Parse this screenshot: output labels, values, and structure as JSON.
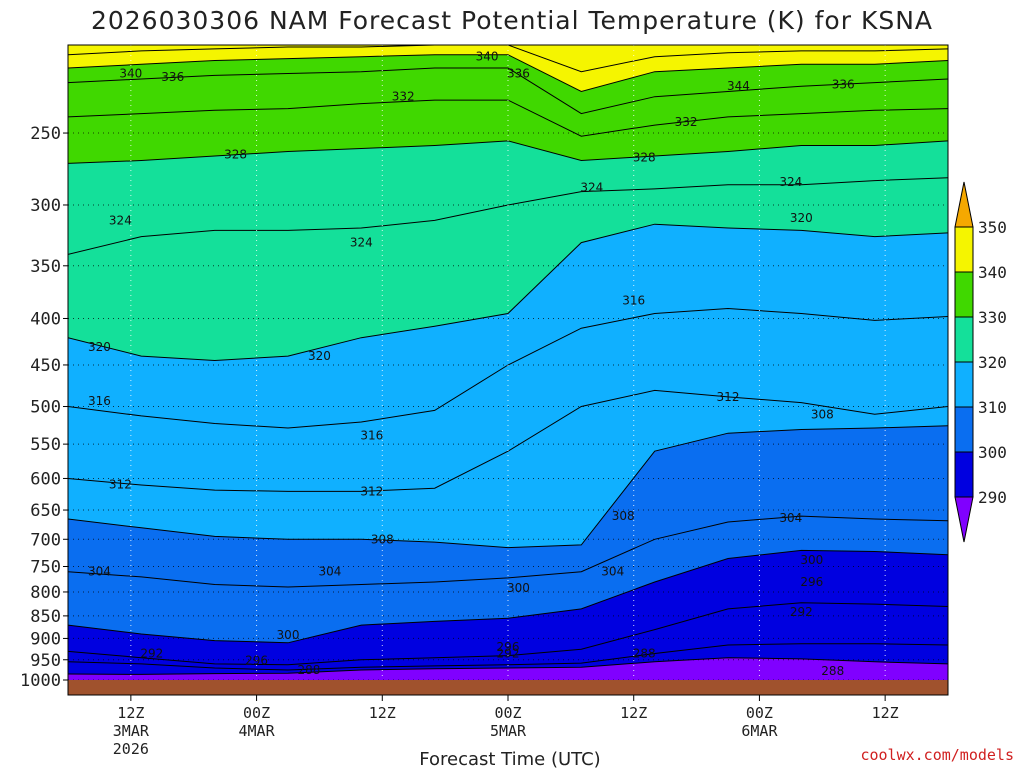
{
  "chart_data": {
    "type": "contour",
    "title": "2026030306 NAM Forecast Potential Temperature (K) for KSNA",
    "xlabel": "Forecast Time (UTC)",
    "ylabel": "",
    "y_scale": "log",
    "y_inverted": true,
    "yticks": [
      250,
      300,
      350,
      400,
      450,
      500,
      550,
      600,
      650,
      700,
      750,
      800,
      850,
      900,
      950,
      1000
    ],
    "ylim": [
      1000,
      200
    ],
    "xticks": [
      {
        "hour": 6,
        "lines": [
          "12Z",
          "3MAR",
          "2026"
        ]
      },
      {
        "hour": 18,
        "lines": [
          "00Z",
          "4MAR"
        ]
      },
      {
        "hour": 30,
        "lines": [
          "12Z"
        ]
      },
      {
        "hour": 42,
        "lines": [
          "00Z",
          "5MAR"
        ]
      },
      {
        "hour": 54,
        "lines": [
          "12Z"
        ]
      },
      {
        "hour": 66,
        "lines": [
          "00Z",
          "6MAR"
        ]
      },
      {
        "hour": 78,
        "lines": [
          "12Z"
        ]
      }
    ],
    "xlim": [
      0,
      84
    ],
    "colorbar": {
      "levels": [
        290,
        300,
        310,
        320,
        330,
        340,
        350
      ],
      "colors": [
        "#8000ff",
        "#0000e0",
        "#0a6ef0",
        "#10b0ff",
        "#14e09a",
        "#40d800",
        "#f5f500",
        "#f5a800"
      ]
    },
    "contour_interval": 4,
    "grid": "dotted",
    "lines": [
      {
        "value": 288,
        "p": [
          985,
          986,
          984,
          983,
          975,
          972,
          970,
          968,
          955,
          945,
          948,
          955,
          960
        ]
      },
      {
        "value": 292,
        "p": [
          955,
          960,
          970,
          975,
          968,
          965,
          962,
          958,
          935,
          915,
          912,
          912,
          915
        ]
      },
      {
        "value": 296,
        "p": [
          930,
          945,
          960,
          962,
          950,
          945,
          940,
          925,
          880,
          835,
          822,
          825,
          830
        ]
      },
      {
        "value": 300,
        "p": [
          870,
          890,
          905,
          910,
          870,
          862,
          855,
          835,
          780,
          735,
          720,
          722,
          728
        ]
      },
      {
        "value": 304,
        "p": [
          760,
          770,
          785,
          790,
          785,
          780,
          772,
          760,
          700,
          670,
          660,
          665,
          668
        ]
      },
      {
        "value": 308,
        "p": [
          665,
          680,
          695,
          700,
          700,
          705,
          715,
          710,
          560,
          535,
          530,
          528,
          525
        ]
      },
      {
        "value": 312,
        "p": [
          600,
          610,
          618,
          620,
          620,
          615,
          560,
          500,
          480,
          488,
          495,
          510,
          500
        ]
      },
      {
        "value": 316,
        "p": [
          500,
          512,
          522,
          528,
          520,
          505,
          450,
          410,
          395,
          390,
          395,
          402,
          398
        ]
      },
      {
        "value": 320,
        "p": [
          420,
          440,
          445,
          440,
          420,
          408,
          395,
          330,
          315,
          318,
          320,
          325,
          322
        ]
      },
      {
        "value": 324,
        "p": [
          340,
          325,
          320,
          320,
          318,
          312,
          300,
          290,
          288,
          285,
          285,
          282,
          280
        ]
      },
      {
        "value": 328,
        "p": [
          270,
          268,
          265,
          262,
          260,
          258,
          255,
          268,
          265,
          262,
          258,
          258,
          255
        ]
      },
      {
        "value": 332,
        "p": [
          240,
          238,
          236,
          235,
          232,
          230,
          230,
          252,
          245,
          240,
          238,
          236,
          235
        ]
      },
      {
        "value": 336,
        "p": [
          220,
          218,
          216,
          215,
          214,
          212,
          212,
          238,
          228,
          225,
          222,
          220,
          218
        ]
      },
      {
        "value": 340,
        "p": [
          212,
          210,
          208,
          207,
          206,
          205,
          205,
          225,
          214,
          212,
          210,
          210,
          208
        ]
      },
      {
        "value": 344,
        "p": [
          205,
          203,
          202,
          201,
          201,
          200,
          200,
          214,
          206,
          204,
          203,
          203,
          202
        ]
      }
    ],
    "contour_labels": [
      {
        "text": "340",
        "hour": 6,
        "p": 215
      },
      {
        "text": "336",
        "hour": 10,
        "p": 217
      },
      {
        "text": "340",
        "hour": 40,
        "p": 206
      },
      {
        "text": "336",
        "hour": 43,
        "p": 215
      },
      {
        "text": "332",
        "hour": 32,
        "p": 228
      },
      {
        "text": "344",
        "hour": 64,
        "p": 222
      },
      {
        "text": "336",
        "hour": 74,
        "p": 221
      },
      {
        "text": "332",
        "hour": 59,
        "p": 243
      },
      {
        "text": "328",
        "hour": 16,
        "p": 264
      },
      {
        "text": "328",
        "hour": 55,
        "p": 266
      },
      {
        "text": "324",
        "hour": 50,
        "p": 287
      },
      {
        "text": "324",
        "hour": 69,
        "p": 283
      },
      {
        "text": "320",
        "hour": 70,
        "p": 310
      },
      {
        "text": "324",
        "hour": 5,
        "p": 312
      },
      {
        "text": "324",
        "hour": 28,
        "p": 330
      },
      {
        "text": "316",
        "hour": 54,
        "p": 382
      },
      {
        "text": "320",
        "hour": 3,
        "p": 430
      },
      {
        "text": "320",
        "hour": 24,
        "p": 440
      },
      {
        "text": "312",
        "hour": 63,
        "p": 488
      },
      {
        "text": "316",
        "hour": 3,
        "p": 493
      },
      {
        "text": "308",
        "hour": 72,
        "p": 510
      },
      {
        "text": "316",
        "hour": 29,
        "p": 538
      },
      {
        "text": "312",
        "hour": 5,
        "p": 609
      },
      {
        "text": "312",
        "hour": 29,
        "p": 620
      },
      {
        "text": "308",
        "hour": 53,
        "p": 660
      },
      {
        "text": "304",
        "hour": 69,
        "p": 663
      },
      {
        "text": "308",
        "hour": 30,
        "p": 700
      },
      {
        "text": "300",
        "hour": 71,
        "p": 738
      },
      {
        "text": "304",
        "hour": 3,
        "p": 760
      },
      {
        "text": "304",
        "hour": 25,
        "p": 760
      },
      {
        "text": "304",
        "hour": 52,
        "p": 760
      },
      {
        "text": "296",
        "hour": 71,
        "p": 780
      },
      {
        "text": "300",
        "hour": 43,
        "p": 792
      },
      {
        "text": "292",
        "hour": 70,
        "p": 842
      },
      {
        "text": "300",
        "hour": 21,
        "p": 892
      },
      {
        "text": "296",
        "hour": 42,
        "p": 920
      },
      {
        "text": "288",
        "hour": 55,
        "p": 935
      },
      {
        "text": "292",
        "hour": 42,
        "p": 935
      },
      {
        "text": "292",
        "hour": 8,
        "p": 935
      },
      {
        "text": "296",
        "hour": 18,
        "p": 952
      },
      {
        "text": "288",
        "hour": 23,
        "p": 975
      },
      {
        "text": "288",
        "hour": 73,
        "p": 978
      }
    ]
  },
  "credit": "coolwx.com/models"
}
